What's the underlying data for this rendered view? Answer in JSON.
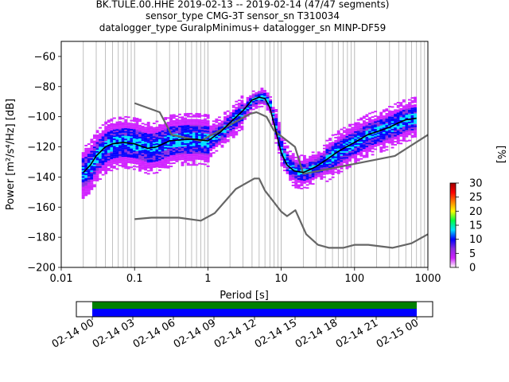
{
  "title": {
    "line1": "BK.TULE.00.HHE   2019-02-13 -- 2019-02-14  (47/47 segments)",
    "line2": "sensor_type CMG-3T sensor_sn T310034",
    "line3": "datalogger_type GuralpMinimus+ datalogger_sn MINP-DF59"
  },
  "chart_data": [
    {
      "type": "heatmap",
      "xlabel": "Period [s]",
      "ylabel": "Power [m²/s⁴/Hz] [dB]",
      "xscale": "log",
      "xlim": [
        0.01,
        1000
      ],
      "ylim": [
        -200,
        -50
      ],
      "xticks": [
        0.01,
        0.1,
        1,
        10,
        100,
        1000
      ],
      "xtick_labels": [
        "0.01",
        "0.1",
        "1",
        "10",
        "100",
        "1000"
      ],
      "yticks": [
        -60,
        -80,
        -100,
        -120,
        -140,
        -160,
        -180,
        -200
      ],
      "ytick_labels": [
        "−60",
        "−80",
        "−100",
        "−120",
        "−140",
        "−160",
        "−180",
        "−200"
      ],
      "grid": "vertical",
      "mode_line": {
        "x": [
          0.02,
          0.025,
          0.03,
          0.04,
          0.05,
          0.07,
          0.1,
          0.15,
          0.2,
          0.3,
          0.5,
          0.7,
          1,
          1.5,
          2,
          3,
          4,
          5,
          6,
          7,
          8,
          10,
          12,
          15,
          20,
          25,
          30,
          40,
          60,
          100,
          150,
          200,
          300,
          400,
          500,
          700
        ],
        "y": [
          -137,
          -132,
          -126,
          -120,
          -118,
          -117,
          -118,
          -121,
          -120,
          -116,
          -115,
          -115,
          -116,
          -110,
          -104,
          -96,
          -89,
          -87,
          -88,
          -94,
          -105,
          -124,
          -132,
          -136,
          -137,
          -135,
          -133,
          -129,
          -123,
          -117,
          -112,
          -110,
          -107,
          -104,
          -102,
          -101
        ]
      },
      "noise_model_high": {
        "x": [
          0.1,
          0.22,
          0.32,
          0.8,
          3.8,
          4.6,
          6.3,
          7.9,
          15.4,
          20,
          354.8,
          1000
        ],
        "y": [
          -91,
          -97,
          -112,
          -116,
          -98,
          -97,
          -100,
          -109,
          -120,
          -138,
          -126,
          -112
        ]
      },
      "noise_model_low": {
        "x": [
          0.1,
          0.17,
          0.4,
          0.8,
          1.24,
          2.4,
          4.3,
          5.0,
          6.0,
          10.0,
          12.0,
          15.6,
          21.9,
          31.6,
          45,
          70,
          101,
          154,
          328,
          600,
          1000
        ],
        "y": [
          -168,
          -167,
          -167,
          -169,
          -164,
          -148,
          -141,
          -141,
          -149,
          -163,
          -166,
          -162,
          -178,
          -185,
          -187,
          -187,
          -185,
          -185,
          -187,
          -184,
          -178
        ]
      },
      "colorbar": {
        "label": "[%]",
        "range": [
          0,
          30
        ],
        "ticks": [
          0,
          5,
          10,
          15,
          20,
          25,
          30
        ],
        "colormap": [
          "#ffffff",
          "#d020ff",
          "#8a2be2",
          "#0000ff",
          "#00e0ff",
          "#00ff40",
          "#ffff00",
          "#ff8000",
          "#ff0000",
          "#a00000"
        ]
      }
    },
    {
      "type": "bar",
      "title": "",
      "xlabel": "",
      "ylabel": "",
      "xlim": [
        "2019-02-13 22:30",
        "2019-02-15 01:30"
      ],
      "coverage_span": [
        "2019-02-14 00:00",
        "2019-02-15 00:00"
      ],
      "xtick_labels": [
        "02-14 00",
        "02-14 03",
        "02-14 06",
        "02-14 09",
        "02-14 12",
        "02-14 15",
        "02-14 18",
        "02-14 21",
        "02-15 00"
      ],
      "colors": {
        "used": "#008000",
        "available": "#0000ff"
      }
    }
  ]
}
